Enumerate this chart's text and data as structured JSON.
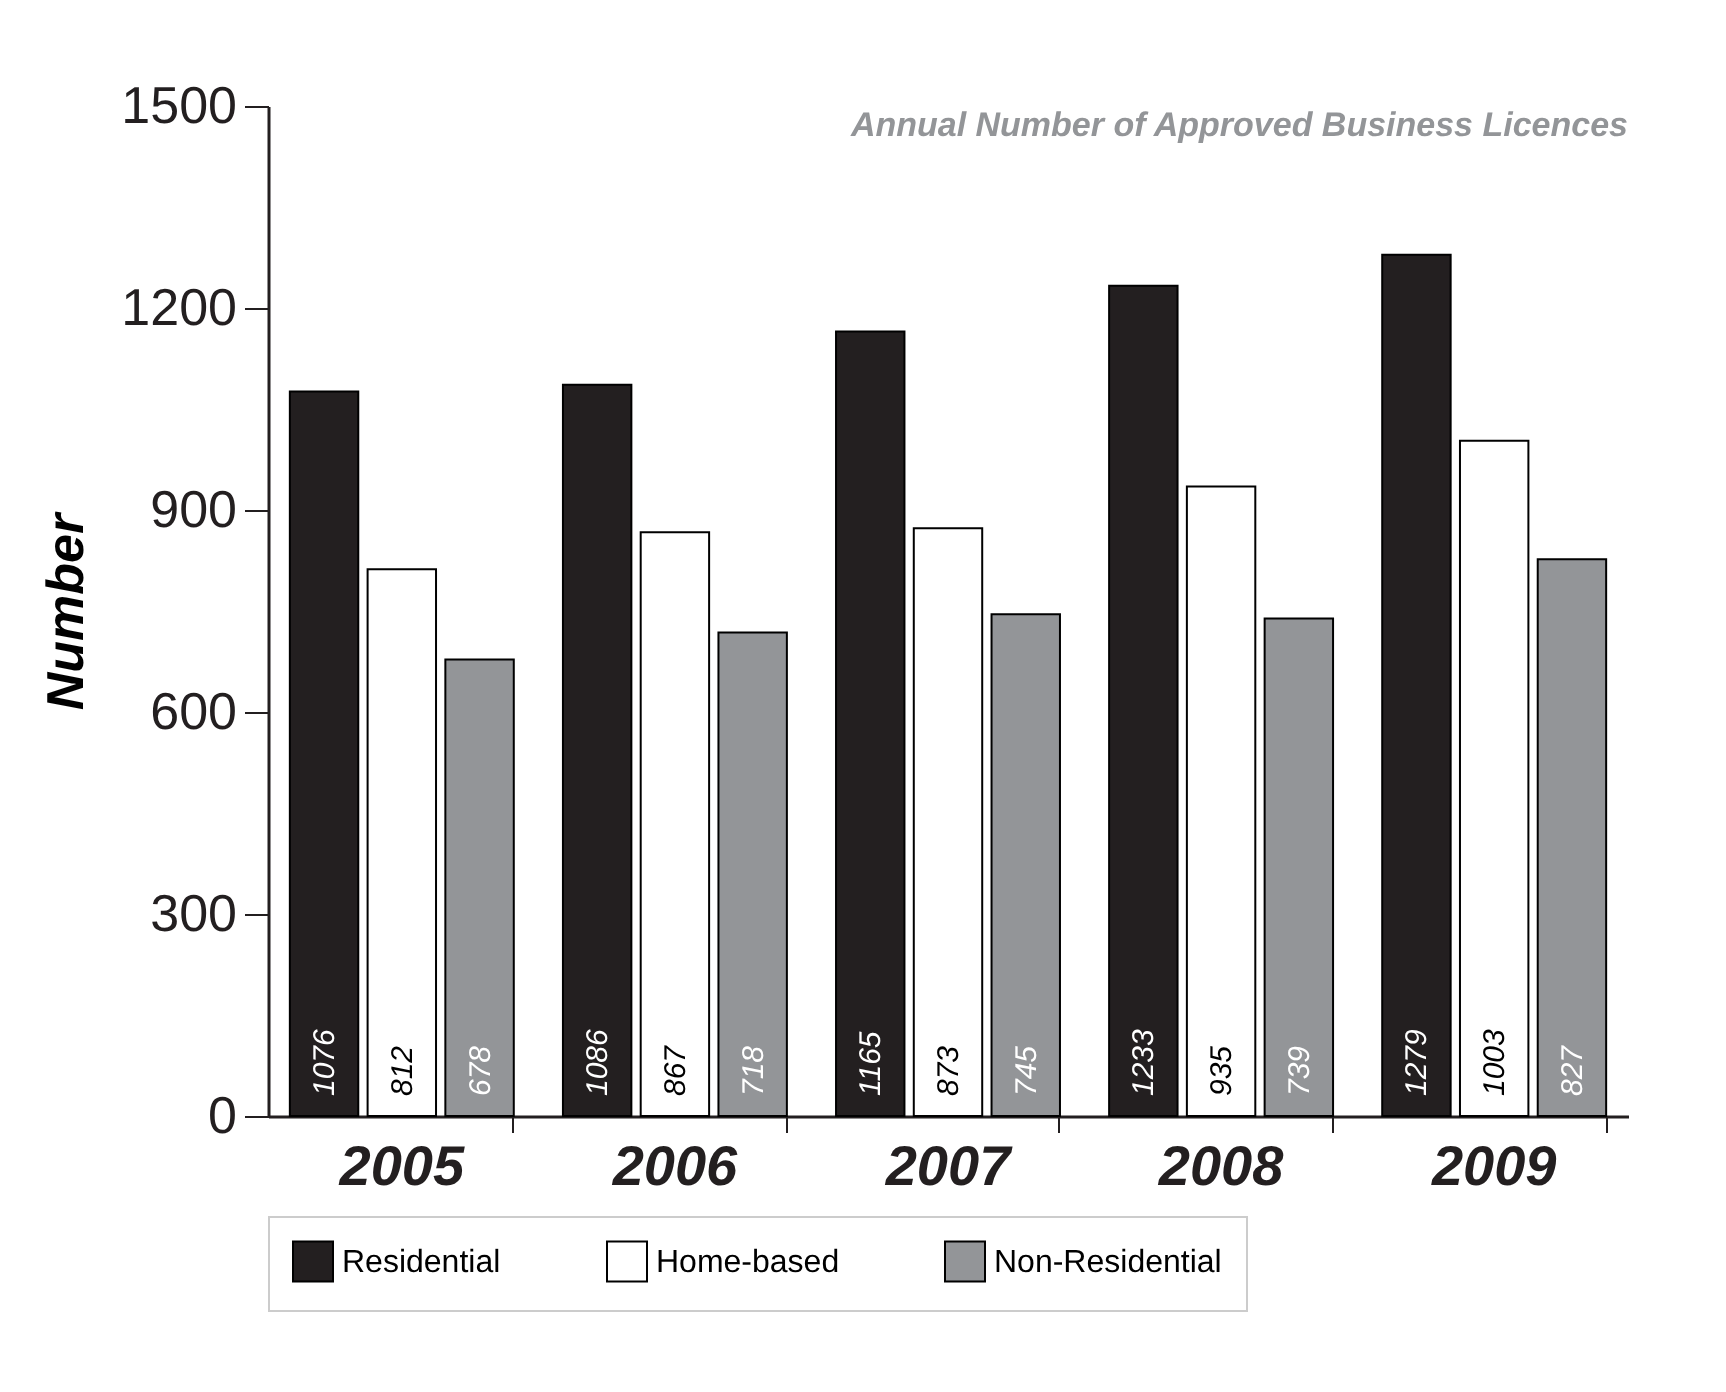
{
  "chart_data": {
    "type": "bar",
    "title": "Annual Number of Approved Business Licences",
    "ylabel": "Number",
    "categories": [
      "2005",
      "2006",
      "2007",
      "2008",
      "2009"
    ],
    "series": [
      {
        "name": "Residential",
        "color": "#231f20",
        "values": [
          1076,
          1086,
          1165,
          1233,
          1279
        ]
      },
      {
        "name": "Home-based",
        "color": "#ffffff",
        "values": [
          812,
          867,
          873,
          935,
          1003
        ]
      },
      {
        "name": "Non-Residential",
        "color": "#939598",
        "values": [
          678,
          718,
          745,
          739,
          827
        ]
      }
    ],
    "ylim": [
      0,
      1500
    ],
    "yticks": [
      0,
      300,
      600,
      900,
      1200,
      1500
    ],
    "grid": false,
    "legend": "bottom",
    "data_labels": true
  }
}
